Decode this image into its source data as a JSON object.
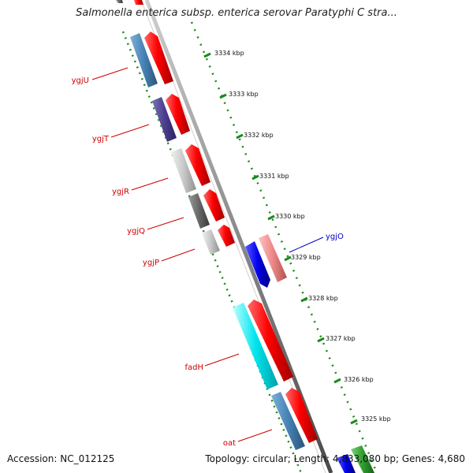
{
  "header": {
    "title": "Salmonella enterica subsp. enterica serovar Paratyphi C stra..."
  },
  "footer": {
    "accession": "Accession: NC_012125",
    "stats": "Topology: circular; Length: 4,833,080 bp; Genes: 4,680"
  },
  "ticks": [
    {
      "label": "3334 kbp"
    },
    {
      "label": "3333 kbp"
    },
    {
      "label": "3332 kbp"
    },
    {
      "label": "3331 kbp"
    },
    {
      "label": "3330 kbp"
    },
    {
      "label": "3329 kbp"
    },
    {
      "label": "3328 kbp"
    },
    {
      "label": "3327 kbp"
    },
    {
      "label": "3326 kbp"
    },
    {
      "label": "3325 kbp"
    }
  ],
  "genes": [
    {
      "name": "ygjU",
      "color": "#cc0000"
    },
    {
      "name": "ygjT",
      "color": "#cc0000"
    },
    {
      "name": "ygjR",
      "color": "#cc0000"
    },
    {
      "name": "ygjQ",
      "color": "#cc0000"
    },
    {
      "name": "ygjP",
      "color": "#cc0000"
    },
    {
      "name": "ygjO",
      "color": "#0000cc"
    },
    {
      "name": "fadH",
      "color": "#cc0000"
    },
    {
      "name": "oat",
      "color": "#cc0000"
    }
  ],
  "colors": {
    "backbone": "#888888",
    "ruler": "#1a7a1a",
    "forward": "#ee0000",
    "reverse_blue": "#0000ee",
    "pink": "#ee8888",
    "steelblue": "#4682b4",
    "purple": "#4b3f8f",
    "lightgray": "#c8c8c8",
    "darkgray": "#6a6a6a",
    "cyan": "#00e5ee",
    "green": "#2e9e2e"
  }
}
